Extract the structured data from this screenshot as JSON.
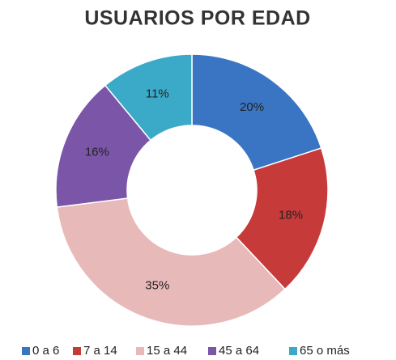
{
  "chart_data": {
    "type": "donut",
    "title": "USUARIOS POR EDAD",
    "categories": [
      "0 a 6",
      "7 a 14",
      "15 a 44",
      "45 a 64",
      "65 o más"
    ],
    "values": [
      20,
      18,
      35,
      16,
      11
    ],
    "value_labels": [
      "20%",
      "18%",
      "35%",
      "16%",
      "11%"
    ],
    "colors": [
      "#3a75c4",
      "#c63a3a",
      "#e8b9b9",
      "#7b55a8",
      "#3aaac8"
    ],
    "legend": "bottom"
  }
}
